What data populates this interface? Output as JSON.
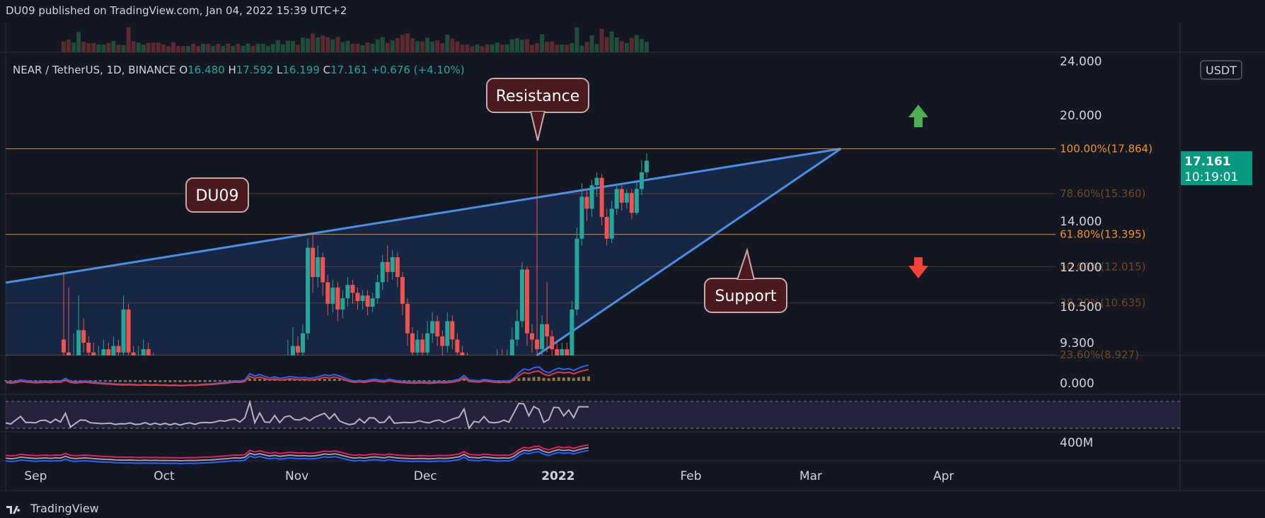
{
  "header": {
    "published": "DU09 published on TradingView.com, Jan 04, 2022 15:39 UTC+2"
  },
  "footer": {
    "brand": "TradingView",
    "logo_icon": "tradingview-logo-icon"
  },
  "legend": {
    "symbol": "NEAR / TetherUS, 1D, BINANCE",
    "open_label": "O",
    "open": "16.480",
    "high_label": "H",
    "high": "17.592",
    "low_label": "L",
    "low": "16.199",
    "close_label": "C",
    "close": "17.161",
    "change": "+0.676 (+4.10%)"
  },
  "price_badge": {
    "price": "17.161",
    "countdown": "10:19:01",
    "color": "#089981"
  },
  "currency": "USDT",
  "annotations": {
    "resistance": "Resistance",
    "support": "Support",
    "author": "DU09"
  },
  "colors": {
    "up": "#26a69a",
    "down": "#ef5350",
    "fib": "#f7931a",
    "trend": "#2962ff",
    "rsi_band": "#7e57c2"
  },
  "chart_data": {
    "type": "candlestick",
    "x_ticks": [
      "Sep",
      "Oct",
      "Nov",
      "Dec",
      "2022",
      "Feb",
      "Mar",
      "Apr"
    ],
    "y_ticks": [
      "24.000",
      "20.000",
      "14.000",
      "12.000",
      "10.500",
      "9.300"
    ],
    "y_scale": "log",
    "fib_levels": [
      {
        "label": "100.00%(17.864)",
        "value": 17.864
      },
      {
        "label": "78.60%(15.360)",
        "value": 15.36
      },
      {
        "label": "61.80%(13.395)",
        "value": 13.395
      },
      {
        "label": "50.00%(12.015)",
        "value": 12.015
      },
      {
        "label": "38.20%(10.635)",
        "value": 10.635
      },
      {
        "label": "23.60%(8.927)",
        "value": 8.927
      }
    ],
    "candles": [
      [
        9.4,
        9.0,
        11.8,
        8.8
      ],
      [
        9.0,
        8.5,
        11.2,
        8.3
      ],
      [
        8.5,
        8.8,
        9.6,
        8.2
      ],
      [
        8.8,
        9.7,
        10.9,
        8.6
      ],
      [
        9.7,
        9.3,
        10.1,
        9.0
      ],
      [
        9.3,
        9.0,
        9.5,
        8.6
      ],
      [
        9.0,
        8.7,
        9.3,
        8.4
      ],
      [
        8.7,
        8.9,
        9.2,
        8.5
      ],
      [
        8.9,
        9.1,
        9.4,
        8.6
      ],
      [
        9.1,
        8.8,
        9.3,
        8.5
      ],
      [
        8.8,
        9.2,
        9.5,
        8.6
      ],
      [
        9.2,
        9.0,
        9.4,
        8.7
      ],
      [
        9.0,
        10.4,
        10.9,
        8.9
      ],
      [
        10.4,
        9.0,
        10.6,
        8.7
      ],
      [
        9.0,
        8.6,
        9.2,
        8.3
      ],
      [
        8.6,
        8.9,
        9.2,
        8.4
      ],
      [
        8.9,
        9.1,
        9.4,
        8.6
      ],
      [
        9.1,
        8.8,
        9.3,
        8.5
      ],
      [
        8.8,
        8.5,
        9.0,
        8.2
      ],
      [
        8.5,
        8.2,
        8.7,
        7.9
      ],
      [
        8.2,
        8.0,
        8.4,
        7.8
      ],
      [
        8.0,
        7.9,
        8.2,
        7.6
      ],
      [
        7.9,
        7.6,
        8.1,
        7.4
      ],
      [
        7.6,
        7.5,
        7.8,
        7.3
      ],
      [
        7.5,
        7.4,
        7.7,
        7.2
      ],
      [
        7.4,
        7.5,
        7.7,
        7.2
      ],
      [
        7.5,
        7.3,
        7.6,
        7.1
      ],
      [
        7.3,
        7.2,
        7.5,
        7.0
      ],
      [
        7.2,
        7.4,
        7.6,
        7.0
      ],
      [
        7.4,
        7.2,
        7.5,
        7.0
      ],
      [
        7.2,
        7.3,
        7.5,
        7.0
      ],
      [
        7.3,
        7.1,
        7.4,
        6.9
      ],
      [
        7.1,
        7.2,
        7.4,
        6.9
      ],
      [
        7.2,
        7.0,
        7.3,
        6.8
      ],
      [
        7.0,
        7.1,
        7.3,
        6.8
      ],
      [
        7.1,
        6.9,
        7.2,
        6.7
      ],
      [
        6.9,
        7.0,
        7.2,
        6.7
      ],
      [
        7.0,
        7.2,
        7.4,
        6.8
      ],
      [
        7.2,
        7.1,
        7.3,
        6.9
      ],
      [
        7.1,
        7.3,
        7.5,
        7.0
      ],
      [
        7.3,
        7.5,
        7.7,
        7.1
      ],
      [
        7.5,
        7.6,
        7.8,
        7.3
      ],
      [
        7.6,
        7.8,
        8.0,
        7.4
      ],
      [
        7.8,
        8.2,
        8.5,
        7.6
      ],
      [
        8.2,
        8.4,
        8.9,
        7.9
      ],
      [
        8.4,
        8.8,
        9.4,
        8.2
      ],
      [
        8.8,
        9.2,
        9.8,
        8.6
      ],
      [
        9.2,
        9.0,
        9.5,
        8.7
      ],
      [
        9.0,
        9.6,
        9.9,
        8.8
      ],
      [
        9.6,
        12.8,
        13.2,
        9.4
      ],
      [
        12.8,
        11.6,
        13.4,
        11.0
      ],
      [
        11.6,
        12.4,
        12.9,
        11.2
      ],
      [
        12.4,
        11.4,
        12.6,
        10.9
      ],
      [
        11.4,
        10.6,
        11.7,
        10.2
      ],
      [
        10.6,
        11.2,
        11.5,
        10.3
      ],
      [
        11.2,
        10.4,
        11.4,
        10.0
      ],
      [
        10.4,
        10.8,
        11.1,
        10.1
      ],
      [
        10.8,
        11.3,
        11.6,
        10.5
      ],
      [
        11.3,
        11.0,
        11.5,
        10.6
      ],
      [
        11.0,
        10.7,
        11.2,
        10.4
      ],
      [
        10.7,
        10.9,
        11.1,
        10.4
      ],
      [
        10.9,
        10.5,
        11.1,
        10.2
      ],
      [
        10.5,
        10.8,
        11.0,
        10.3
      ],
      [
        10.8,
        11.4,
        11.7,
        10.6
      ],
      [
        11.4,
        12.2,
        12.5,
        11.1
      ],
      [
        12.2,
        11.8,
        12.9,
        11.4
      ],
      [
        11.8,
        12.4,
        12.7,
        11.5
      ],
      [
        12.4,
        11.6,
        12.6,
        11.2
      ],
      [
        11.6,
        10.6,
        11.8,
        10.2
      ],
      [
        10.6,
        9.6,
        10.8,
        9.2
      ],
      [
        9.6,
        9.0,
        9.8,
        8.7
      ],
      [
        9.0,
        9.4,
        9.7,
        8.8
      ],
      [
        9.4,
        9.0,
        9.6,
        8.6
      ],
      [
        9.0,
        9.6,
        10.0,
        8.8
      ],
      [
        9.6,
        10.0,
        10.3,
        9.3
      ],
      [
        10.0,
        9.5,
        10.2,
        9.2
      ],
      [
        9.5,
        9.2,
        9.7,
        8.9
      ],
      [
        9.2,
        10.0,
        10.3,
        9.0
      ],
      [
        10.0,
        9.4,
        10.2,
        9.1
      ],
      [
        9.4,
        9.0,
        9.6,
        8.8
      ],
      [
        9.0,
        8.8,
        9.2,
        8.6
      ],
      [
        8.8,
        8.6,
        9.0,
        8.4
      ],
      [
        8.6,
        8.5,
        8.8,
        8.2
      ],
      [
        8.5,
        8.7,
        8.9,
        8.3
      ],
      [
        8.7,
        8.6,
        8.9,
        8.4
      ],
      [
        8.6,
        8.4,
        8.8,
        8.2
      ],
      [
        8.4,
        8.6,
        8.8,
        8.2
      ],
      [
        8.6,
        8.9,
        9.1,
        8.4
      ],
      [
        8.9,
        8.7,
        9.1,
        8.5
      ],
      [
        8.7,
        8.9,
        9.1,
        8.5
      ],
      [
        8.9,
        9.4,
        9.8,
        8.7
      ],
      [
        9.4,
        10.0,
        10.4,
        9.2
      ],
      [
        10.0,
        11.9,
        12.2,
        9.8
      ],
      [
        11.9,
        9.6,
        12.0,
        9.2
      ],
      [
        9.6,
        9.4,
        9.9,
        9.0
      ],
      [
        9.4,
        9.1,
        17.8,
        8.9
      ],
      [
        9.1,
        9.9,
        10.2,
        8.8
      ],
      [
        9.9,
        9.5,
        11.4,
        9.0
      ],
      [
        9.5,
        9.1,
        9.7,
        8.8
      ],
      [
        9.1,
        8.9,
        9.3,
        8.7
      ],
      [
        8.9,
        9.1,
        9.3,
        8.7
      ],
      [
        9.1,
        8.9,
        9.3,
        8.6
      ],
      [
        8.9,
        10.4,
        10.7,
        8.8
      ],
      [
        10.4,
        13.2,
        13.7,
        10.2
      ],
      [
        13.2,
        15.2,
        15.9,
        12.9
      ],
      [
        15.2,
        14.6,
        15.6,
        14.0
      ],
      [
        14.6,
        15.8,
        16.1,
        14.2
      ],
      [
        15.8,
        16.2,
        16.5,
        15.2
      ],
      [
        16.2,
        14.2,
        16.4,
        13.8
      ],
      [
        14.2,
        13.2,
        14.6,
        12.9
      ],
      [
        13.2,
        14.6,
        15.0,
        13.0
      ],
      [
        14.6,
        15.6,
        15.9,
        14.3
      ],
      [
        15.6,
        14.9,
        15.8,
        14.5
      ],
      [
        14.9,
        15.4,
        15.6,
        14.6
      ],
      [
        15.4,
        14.4,
        15.6,
        14.1
      ],
      [
        14.4,
        15.6,
        16.0,
        14.3
      ],
      [
        15.6,
        16.5,
        17.2,
        15.3
      ],
      [
        16.5,
        17.161,
        17.592,
        16.199
      ]
    ],
    "resistance_value": 17.864,
    "support_line": {
      "from": "Dec 27 2021",
      "to": "Mar 08 2022"
    },
    "wedge_upper": {
      "from": "Aug 25 2021",
      "to": "Mar 08 2022"
    }
  }
}
